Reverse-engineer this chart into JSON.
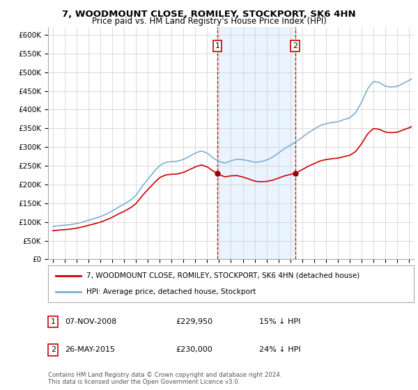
{
  "title": "7, WOODMOUNT CLOSE, ROMILEY, STOCKPORT, SK6 4HN",
  "subtitle": "Price paid vs. HM Land Registry's House Price Index (HPI)",
  "legend_line1": "7, WOODMOUNT CLOSE, ROMILEY, STOCKPORT, SK6 4HN (detached house)",
  "legend_line2": "HPI: Average price, detached house, Stockport",
  "transaction1_date": "07-NOV-2008",
  "transaction1_price": "£229,950",
  "transaction1_hpi": "15% ↓ HPI",
  "transaction2_date": "26-MAY-2015",
  "transaction2_price": "£230,000",
  "transaction2_hpi": "24% ↓ HPI",
  "footnote": "Contains HM Land Registry data © Crown copyright and database right 2024.\nThis data is licensed under the Open Government Licence v3.0.",
  "ylim": [
    0,
    620000
  ],
  "yticks": [
    0,
    50000,
    100000,
    150000,
    200000,
    250000,
    300000,
    350000,
    400000,
    450000,
    500000,
    550000,
    600000
  ],
  "ytick_labels": [
    "£0",
    "£50K",
    "£100K",
    "£150K",
    "£200K",
    "£250K",
    "£300K",
    "£350K",
    "£400K",
    "£450K",
    "£500K",
    "£550K",
    "£600K"
  ],
  "hpi_color": "#7bafd4",
  "price_color": "#cc0000",
  "marker_color": "#990000",
  "vline_color": "#cc0000",
  "shade_color": "#ddeeff",
  "transaction1_x": 2008.85,
  "transaction2_x": 2015.4,
  "t1_y": 229950,
  "t2_y": 230000,
  "xmin": 1995.0,
  "xmax": 2025.2
}
